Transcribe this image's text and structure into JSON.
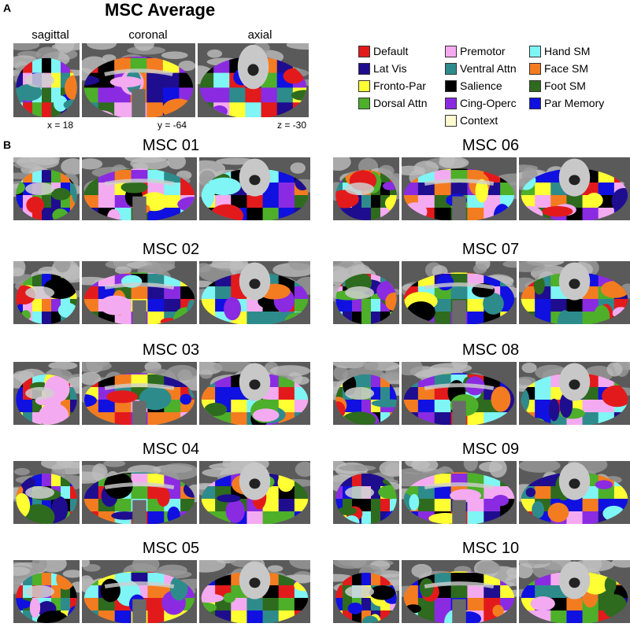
{
  "panel_a": {
    "letter": "A",
    "title": "MSC Average",
    "views": [
      "sagittal",
      "coronal",
      "axial"
    ],
    "coords": [
      "x = 18",
      "y = -64",
      "z = -30"
    ]
  },
  "panel_b": {
    "letter": "B"
  },
  "legend": [
    {
      "label": "Default",
      "color": "#e31a1c"
    },
    {
      "label": "Lat Vis",
      "color": "#1f0d8f"
    },
    {
      "label": "Fronto-Par",
      "color": "#ffff33"
    },
    {
      "label": "Dorsal Attn",
      "color": "#4daf2a"
    },
    {
      "label": "Premotor",
      "color": "#f4aaf0"
    },
    {
      "label": "Ventral Attn",
      "color": "#2e8b8b"
    },
    {
      "label": "Salience",
      "color": "#000000"
    },
    {
      "label": "Cing-Operc",
      "color": "#8a2be2"
    },
    {
      "label": "Context",
      "color": "#fffad0"
    },
    {
      "label": "Hand SM",
      "color": "#7ff5f5"
    },
    {
      "label": "Face SM",
      "color": "#f47c20"
    },
    {
      "label": "Foot SM",
      "color": "#2e6b1e"
    },
    {
      "label": "Par Memory",
      "color": "#1010e0"
    }
  ],
  "subjects": [
    {
      "label": "MSC 01"
    },
    {
      "label": "MSC 06"
    },
    {
      "label": "MSC 02"
    },
    {
      "label": "MSC 07"
    },
    {
      "label": "MSC 03"
    },
    {
      "label": "MSC 08"
    },
    {
      "label": "MSC 04"
    },
    {
      "label": "MSC 09"
    },
    {
      "label": "MSC 05"
    },
    {
      "label": "MSC 10"
    }
  ]
}
